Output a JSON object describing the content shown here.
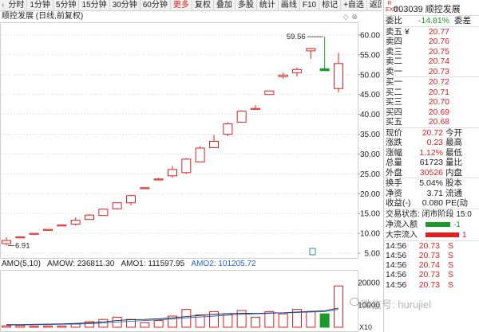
{
  "toolbar": {
    "items": [
      "分时",
      "1分钟",
      "5分钟",
      "15分钟",
      "30分钟",
      "60分钟",
      "更多",
      "复权",
      "叠加",
      "多股",
      "统计",
      "画线",
      "F10",
      "标记",
      "+自选",
      "返回"
    ],
    "active_index": 6
  },
  "title": {
    "text": "顺控发展 (日线,前复权)",
    "icons": [
      "diamond-icon",
      "close-icon"
    ]
  },
  "price_axis": {
    "ticks": [
      "60.00",
      "55.00",
      "50.00",
      "45.00",
      "40.00",
      "35.00",
      "30.00",
      "25.00",
      "20.00",
      "15.00",
      "10.00",
      "5.00"
    ]
  },
  "annotations": {
    "high": "59.56",
    "low": "6.91"
  },
  "volume_header": {
    "amo": "AMO(5,10)",
    "amow": "AMOW: 236811.30",
    "amo1": "AMO1: 111597.95",
    "amo2": "AMO2: 101205.72"
  },
  "volume_axis": {
    "ticks": [
      "20000",
      "10000",
      "X10"
    ]
  },
  "chart_data": [
    {
      "type": "candlestick",
      "title": "顺控发展 (日线,前复权)",
      "ylim": [
        5,
        62
      ],
      "candles": [
        {
          "o": 7.4,
          "h": 9.0,
          "l": 6.91,
          "c": 8.2
        },
        {
          "o": 9.0,
          "h": 9.2,
          "l": 9.0,
          "c": 9.1
        },
        {
          "o": 10.0,
          "h": 10.1,
          "l": 10.0,
          "c": 10.0
        },
        {
          "o": 11.0,
          "h": 11.1,
          "l": 11.0,
          "c": 11.0
        },
        {
          "o": 12.1,
          "h": 12.2,
          "l": 12.1,
          "c": 12.1
        },
        {
          "o": 12.3,
          "h": 14.0,
          "l": 12.0,
          "c": 13.3
        },
        {
          "o": 13.5,
          "h": 14.8,
          "l": 13.4,
          "c": 14.6
        },
        {
          "o": 14.5,
          "h": 16.2,
          "l": 14.5,
          "c": 16.1
        },
        {
          "o": 16.2,
          "h": 17.8,
          "l": 16.0,
          "c": 17.7
        },
        {
          "o": 17.7,
          "h": 19.6,
          "l": 17.0,
          "c": 19.5
        },
        {
          "o": 21.5,
          "h": 21.6,
          "l": 21.5,
          "c": 21.5
        },
        {
          "o": 23.6,
          "h": 24.0,
          "l": 23.6,
          "c": 23.7
        },
        {
          "o": 24.5,
          "h": 27.0,
          "l": 24.0,
          "c": 26.1
        },
        {
          "o": 25.3,
          "h": 29.0,
          "l": 25.0,
          "c": 28.7
        },
        {
          "o": 28.0,
          "h": 32.0,
          "l": 28.0,
          "c": 31.5
        },
        {
          "o": 31.6,
          "h": 34.8,
          "l": 31.5,
          "c": 33.2
        },
        {
          "o": 35.0,
          "h": 38.0,
          "l": 34.5,
          "c": 37.6
        },
        {
          "o": 38.0,
          "h": 41.0,
          "l": 38.0,
          "c": 40.8
        },
        {
          "o": 41.5,
          "h": 42.3,
          "l": 41.5,
          "c": 41.5
        },
        {
          "o": 45.0,
          "h": 46.0,
          "l": 45.0,
          "c": 45.9
        },
        {
          "o": 49.5,
          "h": 50.5,
          "l": 49.0,
          "c": 49.9
        },
        {
          "o": 50.5,
          "h": 51.8,
          "l": 49.5,
          "c": 51.3
        },
        {
          "o": 56.0,
          "h": 56.8,
          "l": 54.0,
          "c": 56.6
        },
        {
          "o": 51.5,
          "h": 59.56,
          "l": 51.0,
          "c": 51.0
        },
        {
          "o": 46.5,
          "h": 55.5,
          "l": 45.5,
          "c": 52.8
        }
      ]
    },
    {
      "type": "bar",
      "title": "AMO(5,10)",
      "ylim": [
        0,
        25000
      ],
      "values": [
        600,
        700,
        400,
        500,
        500,
        1500,
        2500,
        3500,
        4500,
        3500,
        2000,
        3000,
        5000,
        8000,
        5500,
        7000,
        6000,
        7500,
        4500,
        7000,
        6000,
        8000,
        7000,
        6000,
        18500
      ],
      "series_lines": [
        {
          "name": "AMO1",
          "values": [
            1200,
            1200,
            1300,
            1400,
            1500,
            1700,
            2000,
            2400,
            3000,
            3400,
            3500,
            3800,
            4200,
            4800,
            5300,
            5800,
            6100,
            6300,
            6200,
            6400,
            6500,
            6800,
            7100,
            7400,
            8600
          ]
        },
        {
          "name": "AMO2",
          "values": [
            900,
            1000,
            1100,
            1200,
            1300,
            1400,
            1600,
            1900,
            2300,
            2700,
            3000,
            3300,
            3700,
            4200,
            4600,
            5000,
            5400,
            5800,
            6000,
            6200,
            6400,
            6600,
            6800,
            7000,
            8000
          ]
        }
      ],
      "bar_colors": [
        "up",
        "up",
        "up",
        "up",
        "up",
        "up",
        "up",
        "up",
        "up",
        "up",
        "up",
        "up",
        "up",
        "up",
        "up",
        "up",
        "up",
        "up",
        "up",
        "up",
        "up",
        "up",
        "up",
        "down",
        "up"
      ]
    }
  ],
  "colors": {
    "up": "#e02020",
    "down": "#1a9a2a",
    "grid": "#d8d8d8",
    "amo1": "#222222",
    "amo2": "#2266cc"
  },
  "panel": {
    "badge": "R\nEXIT",
    "code": "003039",
    "name": "顺控发展",
    "weibi_label": "委比",
    "weibi_value": "-14.81%",
    "weicha_label": "委差",
    "sell": [
      {
        "label": "卖五 ¥",
        "price": "20.77"
      },
      {
        "label": "卖四",
        "price": "20.76"
      },
      {
        "label": "卖三",
        "price": "20.75"
      },
      {
        "label": "卖二",
        "price": "20.74"
      },
      {
        "label": "卖一",
        "price": "20.73"
      }
    ],
    "buy": [
      {
        "label": "买一",
        "price": "20.72"
      },
      {
        "label": "买二",
        "price": "20.71"
      },
      {
        "label": "买三",
        "price": "20.70"
      },
      {
        "label": "买四",
        "price": "20.69"
      },
      {
        "label": "买五",
        "price": "20.68"
      }
    ],
    "stats": [
      {
        "label": "现价",
        "value": "20.72",
        "extra": "今开",
        "cls": "red"
      },
      {
        "label": "涨跌",
        "value": "0.23",
        "extra": "最高",
        "cls": "red"
      },
      {
        "label": "涨幅",
        "value": "1.12%",
        "extra": "最低",
        "cls": "red"
      },
      {
        "label": "总量",
        "value": "61723",
        "extra": "量比",
        "cls": "blk"
      },
      {
        "label": "外盘",
        "value": "30526",
        "extra": "内盘",
        "cls": "red"
      }
    ],
    "stats2": [
      {
        "label": "换手",
        "value": "5.04%",
        "extra": "股本",
        "cls": "blk"
      },
      {
        "label": "净资",
        "value": "3.71",
        "extra": "流通",
        "cls": "blk"
      },
      {
        "label": "收益(-)",
        "value": "0.080",
        "extra": "PE(动",
        "cls": "blk"
      }
    ],
    "trade_status": "交易状态: 闭市阶段 15:0",
    "flows": [
      {
        "label": "净流入额",
        "color": "#1a9a2a",
        "value": "-1",
        "fill": 0.55,
        "cls": "green"
      },
      {
        "label": "大宗流入",
        "color": "#e02020",
        "value": "1",
        "fill": 0.75,
        "cls": "red"
      }
    ],
    "ticks": [
      {
        "time": "14:56",
        "price": "20.73",
        "side": "S"
      },
      {
        "time": "14:56",
        "price": "20.73",
        "side": "S"
      },
      {
        "time": "14:56",
        "price": "20.74",
        "side": "S"
      },
      {
        "time": "14:56",
        "price": "20.73",
        "side": "S"
      },
      {
        "time": "14:56",
        "price": "20.73",
        "side": "S"
      }
    ]
  },
  "watermark": "微信号: hurujiel"
}
